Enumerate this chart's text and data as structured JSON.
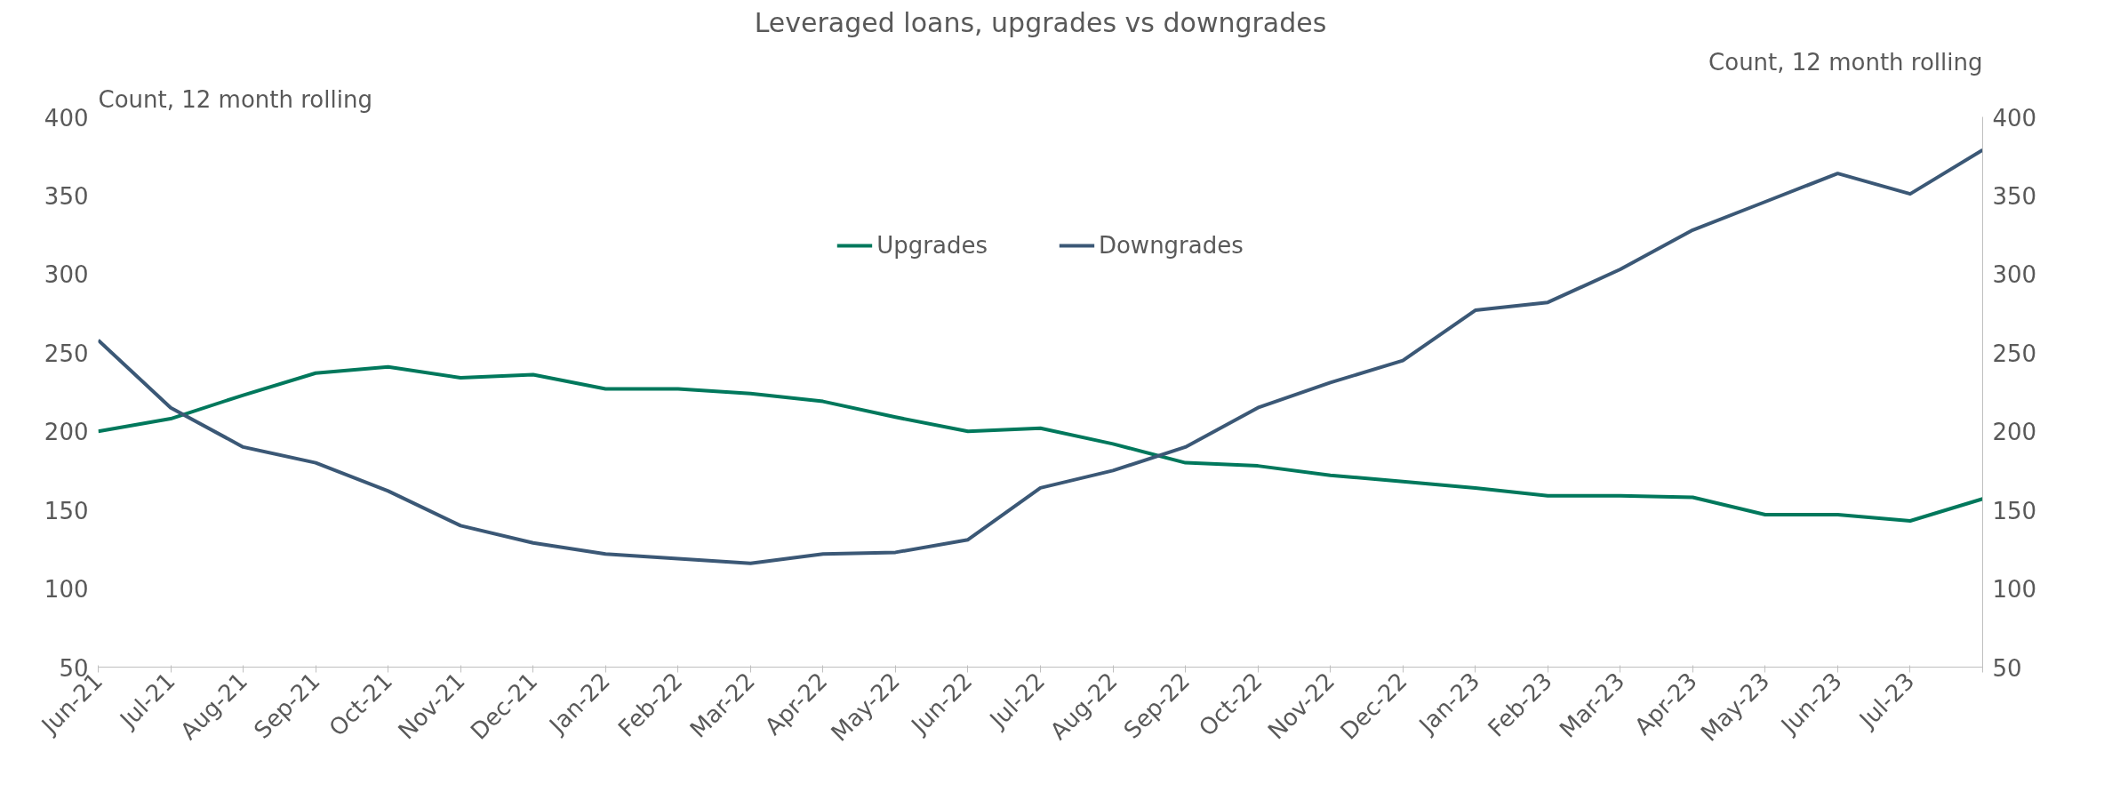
{
  "chart_data": {
    "type": "line",
    "title": "Leveraged loans, upgrades vs downgrades",
    "ylabel": "Count, 12 month rolling",
    "y2label": "Count, 12 month rolling",
    "categories": [
      "Jun-21",
      "Jul-21",
      "Aug-21",
      "Sep-21",
      "Oct-21",
      "Nov-21",
      "Dec-21",
      "Jan-22",
      "Feb-22",
      "Mar-22",
      "Apr-22",
      "May-22",
      "Jun-22",
      "Jul-22",
      "Aug-22",
      "Sep-22",
      "Oct-22",
      "Nov-22",
      "Dec-22",
      "Jan-23",
      "Feb-23",
      "Mar-23",
      "Apr-23",
      "May-23",
      "Jun-23",
      "Jul-23",
      null
    ],
    "series": [
      {
        "name": "Upgrades",
        "color": "#00785c",
        "values": [
          200,
          208,
          223,
          237,
          241,
          234,
          236,
          227,
          227,
          224,
          219,
          209,
          200,
          202,
          192,
          180,
          178,
          172,
          168,
          164,
          159,
          159,
          158,
          147,
          147,
          143,
          157
        ]
      },
      {
        "name": "Downgrades",
        "color": "#3b5876",
        "values": [
          258,
          215,
          190,
          180,
          162,
          140,
          129,
          122,
          119,
          116,
          122,
          123,
          131,
          164,
          175,
          190,
          215,
          231,
          245,
          277,
          282,
          303,
          328,
          346,
          364,
          351,
          379
        ]
      }
    ],
    "ylim": [
      50,
      400
    ],
    "yticks": [
      50,
      100,
      150,
      200,
      250,
      300,
      350,
      400
    ],
    "y2lim": [
      50,
      400
    ],
    "y2ticks": [
      50,
      100,
      150,
      200,
      250,
      300,
      350,
      400
    ],
    "grid": false,
    "legend": "top",
    "marker": "none",
    "line_style": "solid"
  }
}
